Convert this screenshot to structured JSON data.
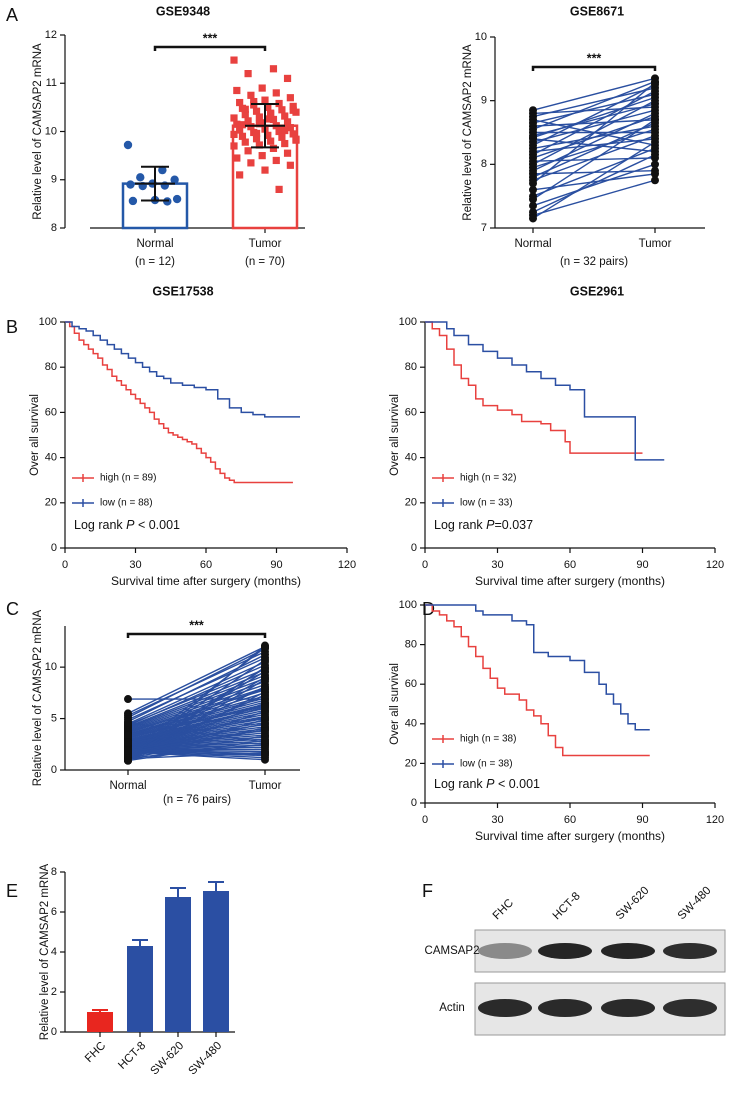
{
  "chart_data": [
    {
      "panel": "A",
      "type": "scatter-bar",
      "title": "GSE9348",
      "ylabel": "Relative level of CAMSAP2 mRNA",
      "categories": [
        "Normal",
        "Tumor"
      ],
      "category_notes": [
        "(n = 12)",
        "(n = 70)"
      ],
      "significance": "***",
      "ylim": [
        8,
        12
      ],
      "yticks": [
        8,
        9,
        10,
        11,
        12
      ],
      "groups": [
        {
          "color": "#2458a8",
          "marker": "circle",
          "mean": 8.92,
          "error": 0.35,
          "points": [
            9.72,
            9.2,
            9.05,
            9.0,
            8.92,
            8.9,
            8.88,
            8.87,
            8.6,
            8.58,
            8.56,
            8.55
          ]
        },
        {
          "color": "#e8413f",
          "marker": "square",
          "mean": 10.12,
          "error": 0.45,
          "points": [
            11.48,
            11.3,
            11.2,
            11.1,
            10.9,
            10.85,
            10.8,
            10.75,
            10.7,
            10.65,
            10.6,
            10.58,
            10.55,
            10.52,
            10.5,
            10.48,
            10.45,
            10.42,
            10.4,
            10.38,
            10.35,
            10.32,
            10.3,
            10.28,
            10.25,
            10.22,
            10.2,
            10.18,
            10.15,
            10.12,
            10.1,
            10.08,
            10.05,
            10.03,
            10.0,
            9.98,
            9.95,
            9.92,
            9.9,
            9.88,
            9.85,
            9.82,
            9.8,
            9.78,
            9.75,
            9.72,
            9.7,
            9.65,
            9.6,
            9.55,
            9.5,
            9.45,
            9.4,
            9.35,
            9.3,
            9.2,
            9.1,
            8.8,
            10.62,
            10.44,
            10.26,
            10.14,
            10.06,
            9.96,
            9.84,
            10.36,
            10.46,
            10.02,
            10.16,
            9.94
          ]
        }
      ]
    },
    {
      "type": "paired",
      "title": "GSE8671",
      "ylabel": "Relative level of CAMSAP2 mRNA",
      "categories": [
        "Normal",
        "Tumor"
      ],
      "note": "(n = 32 pairs)",
      "significance": "***",
      "ylim": [
        7,
        10
      ],
      "yticks": [
        7,
        8,
        9,
        10
      ],
      "line_color": "#2a4fa0",
      "point_color": "#111111",
      "points": [
        [
          8.85,
          8.8,
          8.75,
          8.7,
          8.65,
          8.6,
          8.55,
          8.5,
          8.45,
          8.42,
          8.4,
          8.35,
          8.3,
          8.25,
          8.2,
          8.15,
          8.1,
          8.05,
          8.0,
          7.95,
          7.9,
          7.85,
          7.8,
          7.75,
          7.7,
          7.6,
          7.5,
          7.45,
          7.35,
          7.25,
          7.2,
          7.15
        ],
        [
          9.35,
          8.9,
          9.2,
          8.3,
          9.1,
          8.7,
          9.3,
          8.5,
          8.95,
          9.05,
          8.2,
          8.85,
          9.25,
          8.6,
          8.4,
          9.15,
          8.75,
          8.1,
          9.0,
          8.55,
          8.8,
          7.9,
          8.65,
          8.45,
          9.28,
          7.85,
          8.25,
          8.7,
          8.0,
          8.15,
          7.75,
          8.35
        ]
      ]
    },
    {
      "panel": "B",
      "type": "km",
      "title": "GSE17538",
      "ylabel": "Over all survival",
      "xlabel": "Survival time after surgery (months)",
      "xlim": [
        0,
        120
      ],
      "xticks": [
        0,
        30,
        60,
        90,
        120
      ],
      "ylim": [
        0,
        100
      ],
      "yticks": [
        0,
        20,
        40,
        60,
        80,
        100
      ],
      "annotation": [
        "Log rank ",
        "P",
        " < 0.001"
      ],
      "series": [
        {
          "name": "high (n = 89)",
          "color": "#e8413f",
          "x": [
            0,
            2,
            4,
            6,
            8,
            10,
            12,
            14,
            16,
            18,
            20,
            22,
            24,
            26,
            28,
            30,
            32,
            34,
            36,
            38,
            40,
            42,
            44,
            46,
            48,
            50,
            52,
            54,
            56,
            58,
            60,
            62,
            64,
            66,
            68,
            70,
            72,
            97
          ],
          "values": [
            100,
            98,
            95,
            92,
            90,
            88,
            86,
            84,
            81,
            79,
            76,
            74,
            72,
            70,
            68,
            66,
            64,
            62,
            60,
            57,
            55,
            53,
            51,
            50,
            49,
            48,
            47,
            46,
            44,
            42,
            40,
            38,
            35,
            33,
            31,
            30,
            29,
            29
          ]
        },
        {
          "name": "low (n = 88)",
          "color": "#2b4fa3",
          "x": [
            0,
            3,
            6,
            9,
            12,
            15,
            18,
            21,
            24,
            27,
            30,
            33,
            36,
            39,
            42,
            45,
            50,
            55,
            60,
            65,
            70,
            75,
            80,
            85,
            100
          ],
          "values": [
            100,
            98,
            97,
            96,
            94,
            92,
            90,
            88,
            86,
            84,
            82,
            80,
            78,
            76,
            75,
            73,
            72,
            71,
            70,
            66,
            62,
            60,
            59,
            58,
            58
          ]
        }
      ]
    },
    {
      "type": "km",
      "title": "GSE2961",
      "ylabel": "Over all survival",
      "xlabel": "Survival time after surgery (months)",
      "xlim": [
        0,
        120
      ],
      "xticks": [
        0,
        30,
        60,
        90,
        120
      ],
      "ylim": [
        0,
        100
      ],
      "yticks": [
        0,
        20,
        40,
        60,
        80,
        100
      ],
      "annotation": [
        "Log rank ",
        "P",
        "=0.037"
      ],
      "series": [
        {
          "name": "high (n = 32)",
          "color": "#e8413f",
          "x": [
            0,
            3,
            6,
            9,
            12,
            15,
            18,
            21,
            24,
            30,
            36,
            40,
            48,
            52,
            58,
            60,
            90
          ],
          "values": [
            100,
            97,
            94,
            88,
            81,
            75,
            72,
            66,
            63,
            61,
            59,
            56,
            55,
            52,
            47,
            42,
            42
          ]
        },
        {
          "name": "low (n = 33)",
          "color": "#2b4fa3",
          "x": [
            0,
            6,
            9,
            12,
            18,
            24,
            30,
            36,
            42,
            48,
            54,
            60,
            66,
            86,
            87,
            99
          ],
          "values": [
            100,
            100,
            97,
            94,
            90,
            87,
            84,
            81,
            78,
            75,
            72,
            70,
            58,
            58,
            39,
            39
          ]
        }
      ]
    },
    {
      "panel": "C",
      "type": "paired",
      "ylabel": "Relative level of CAMSAP2 mRNA",
      "categories": [
        "Normal",
        "Tumor"
      ],
      "note": "(n = 76 pairs)",
      "significance": "***",
      "ylim": [
        0,
        14
      ],
      "yticks": [
        0,
        5,
        10
      ],
      "line_color": "#2a4fa0",
      "point_color": "#111111",
      "points": [
        [
          6.9,
          5.5,
          5.3,
          5.1,
          4.9,
          4.7,
          4.5,
          4.4,
          4.3,
          4.2,
          4.1,
          4.0,
          3.9,
          3.8,
          3.7,
          3.6,
          3.5,
          3.45,
          3.4,
          3.3,
          3.2,
          3.15,
          3.1,
          3.0,
          2.95,
          2.9,
          2.85,
          2.8,
          2.75,
          2.7,
          2.65,
          2.6,
          2.55,
          2.5,
          2.45,
          2.4,
          2.35,
          2.3,
          2.25,
          2.2,
          2.15,
          2.1,
          2.05,
          2.0,
          1.95,
          1.9,
          1.85,
          1.8,
          1.75,
          1.7,
          1.65,
          1.6,
          1.55,
          1.5,
          1.45,
          1.4,
          1.35,
          1.3,
          1.25,
          1.2,
          1.15,
          1.1,
          1.05,
          1.0,
          0.95,
          0.9,
          3.25,
          2.55,
          1.75,
          4.6,
          2.05,
          1.45,
          3.35,
          2.65,
          1.85,
          0.92
        ],
        [
          6.9,
          12.0,
          11.5,
          11.8,
          10.9,
          11.2,
          10.5,
          9.8,
          10.2,
          9.5,
          9.2,
          8.9,
          8.6,
          8.3,
          8.0,
          7.8,
          7.5,
          7.2,
          7.0,
          6.8,
          6.6,
          6.4,
          6.2,
          6.0,
          5.8,
          5.6,
          5.4,
          5.2,
          5.0,
          4.8,
          4.6,
          4.4,
          4.2,
          4.0,
          3.8,
          3.6,
          3.4,
          3.2,
          3.0,
          2.8,
          2.6,
          2.4,
          2.2,
          2.0,
          1.8,
          1.6,
          1.4,
          1.2,
          1.0,
          11.9,
          10.7,
          9.9,
          9.0,
          8.1,
          7.3,
          6.5,
          5.7,
          4.9,
          4.1,
          3.3,
          2.5,
          1.7,
          12.1,
          10.0,
          8.8,
          7.6,
          6.3,
          5.1,
          3.9,
          2.7,
          1.5,
          9.6,
          7.9,
          6.1,
          4.5,
          2.9
        ]
      ]
    },
    {
      "panel": "D",
      "type": "km",
      "ylabel": "Over all survival",
      "xlabel": "Survival time after surgery (months)",
      "xlim": [
        0,
        120
      ],
      "xticks": [
        0,
        30,
        60,
        90,
        120
      ],
      "ylim": [
        0,
        100
      ],
      "yticks": [
        0,
        20,
        40,
        60,
        80,
        100
      ],
      "annotation": [
        "Log rank ",
        "P",
        " < 0.001"
      ],
      "series": [
        {
          "name": "high (n = 38)",
          "color": "#e8413f",
          "x": [
            0,
            3,
            6,
            9,
            12,
            15,
            18,
            21,
            24,
            27,
            30,
            33,
            36,
            39,
            42,
            45,
            48,
            51,
            54,
            57,
            93
          ],
          "values": [
            100,
            97,
            95,
            92,
            89,
            84,
            79,
            74,
            68,
            63,
            58,
            55,
            55,
            52,
            47,
            44,
            40,
            34,
            28,
            24,
            24
          ]
        },
        {
          "name": "low (n = 38)",
          "color": "#2b4fa3",
          "x": [
            0,
            18,
            21,
            24,
            36,
            42,
            45,
            48,
            51,
            60,
            66,
            72,
            75,
            78,
            81,
            84,
            87,
            93
          ],
          "values": [
            100,
            100,
            97,
            95,
            92,
            90,
            76,
            76,
            74,
            72,
            66,
            60,
            55,
            50,
            45,
            40,
            37,
            37
          ]
        }
      ]
    },
    {
      "panel": "E",
      "type": "bar",
      "ylabel": "Relative level of CAMSAP2 mRNA",
      "categories": [
        "FHC",
        "HCT-8",
        "SW-620",
        "SW-480"
      ],
      "values": [
        1.0,
        4.3,
        6.75,
        7.05
      ],
      "errors": [
        0.1,
        0.3,
        0.45,
        0.45
      ],
      "colors": [
        "#e8261f",
        "#2b4fa3",
        "#2b4fa3",
        "#2b4fa3"
      ],
      "ylim": [
        0,
        8
      ],
      "yticks": [
        0,
        2,
        4,
        6,
        8
      ]
    },
    {
      "panel": "F",
      "type": "blot",
      "lanes": [
        "FHC",
        "HCT-8",
        "SW-620",
        "SW-480"
      ],
      "rows": [
        "CAMSAP2",
        "Actin"
      ]
    }
  ]
}
